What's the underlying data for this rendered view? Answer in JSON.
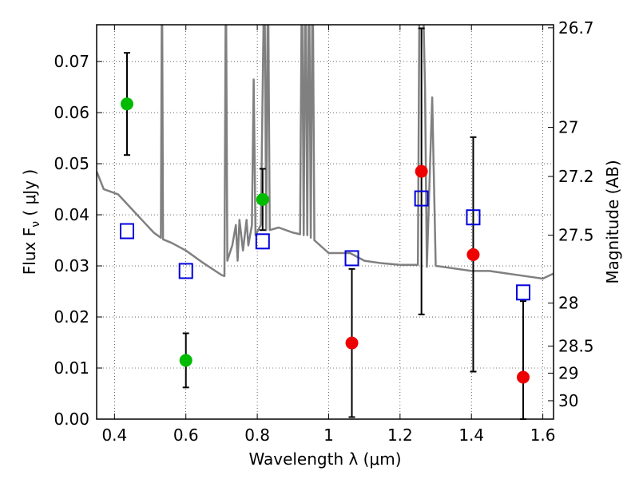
{
  "chart_data": {
    "type": "scatter",
    "xlabel": "Wavelength  λ (μm)",
    "ylabel": "Flux  F_ν  ( μJy )",
    "ylabel_right": "Magnitude (AB)",
    "xlim": [
      0.35,
      1.63
    ],
    "ylim": [
      0.0,
      0.0772
    ],
    "grid": true,
    "x_ticks": [
      0.4,
      0.6,
      0.8,
      1.0,
      1.2,
      1.4,
      1.6
    ],
    "x_tick_labels": [
      "0.4",
      "0.6",
      "0.8",
      "1",
      "1.2",
      "1.4",
      "1.6"
    ],
    "y_ticks": [
      0.0,
      0.01,
      0.02,
      0.03,
      0.04,
      0.05,
      0.06,
      0.07
    ],
    "y_tick_labels": [
      "0.00",
      "0.01",
      "0.02",
      "0.03",
      "0.04",
      "0.05",
      "0.06",
      "0.07"
    ],
    "right_ticks": [
      {
        "label": "26.7",
        "flux": 0.0766
      },
      {
        "label": "27",
        "flux": 0.0571
      },
      {
        "label": "27.2",
        "flux": 0.0475
      },
      {
        "label": "27.5",
        "flux": 0.036
      },
      {
        "label": "28",
        "flux": 0.0227
      },
      {
        "label": "28.5",
        "flux": 0.0143
      },
      {
        "label": "29",
        "flux": 0.009
      },
      {
        "label": "30",
        "flux": 0.0036
      }
    ],
    "series": [
      {
        "color": "#808080",
        "style": "line",
        "points": [
          [
            0.35,
            0.0485
          ],
          [
            0.37,
            0.045
          ],
          [
            0.39,
            0.0445
          ],
          [
            0.41,
            0.044
          ],
          [
            0.43,
            0.0425
          ],
          [
            0.45,
            0.041
          ],
          [
            0.47,
            0.0395
          ],
          [
            0.49,
            0.038
          ],
          [
            0.51,
            0.0365
          ],
          [
            0.53,
            0.0355
          ],
          [
            0.533,
            0.09
          ],
          [
            0.536,
            0.0352
          ],
          [
            0.56,
            0.0345
          ],
          [
            0.6,
            0.033
          ],
          [
            0.65,
            0.0305
          ],
          [
            0.7,
            0.0282
          ],
          [
            0.708,
            0.028
          ],
          [
            0.712,
            0.09
          ],
          [
            0.716,
            0.031
          ],
          [
            0.73,
            0.034
          ],
          [
            0.74,
            0.038
          ],
          [
            0.745,
            0.031
          ],
          [
            0.75,
            0.039
          ],
          [
            0.76,
            0.033
          ],
          [
            0.77,
            0.039
          ],
          [
            0.775,
            0.034
          ],
          [
            0.785,
            0.038
          ],
          [
            0.79,
            0.0665
          ],
          [
            0.795,
            0.036
          ],
          [
            0.81,
            0.038
          ],
          [
            0.82,
            0.09
          ],
          [
            0.825,
            0.037
          ],
          [
            0.83,
            0.09
          ],
          [
            0.835,
            0.037
          ],
          [
            0.86,
            0.0375
          ],
          [
            0.9,
            0.0365
          ],
          [
            0.92,
            0.0362
          ],
          [
            0.925,
            0.09
          ],
          [
            0.93,
            0.036
          ],
          [
            0.935,
            0.09
          ],
          [
            0.94,
            0.036
          ],
          [
            0.945,
            0.09
          ],
          [
            0.95,
            0.0355
          ],
          [
            0.955,
            0.09
          ],
          [
            0.96,
            0.035
          ],
          [
            1.0,
            0.0325
          ],
          [
            1.06,
            0.0325
          ],
          [
            1.1,
            0.031
          ],
          [
            1.15,
            0.0305
          ],
          [
            1.2,
            0.0302
          ],
          [
            1.25,
            0.0302
          ],
          [
            1.255,
            0.09
          ],
          [
            1.262,
            0.09
          ],
          [
            1.27,
            0.065
          ],
          [
            1.275,
            0.0298
          ],
          [
            1.29,
            0.063
          ],
          [
            1.3,
            0.03
          ],
          [
            1.35,
            0.0295
          ],
          [
            1.4,
            0.029
          ],
          [
            1.45,
            0.029
          ],
          [
            1.5,
            0.0285
          ],
          [
            1.55,
            0.028
          ],
          [
            1.6,
            0.0275
          ],
          [
            1.63,
            0.0285
          ]
        ]
      },
      {
        "color": "#00bb00",
        "style": "marker-circle",
        "points": [
          [
            0.435,
            0.0617,
            0.0517,
            0.0717
          ],
          [
            0.6,
            0.0115,
            0.0062,
            0.0168
          ],
          [
            0.815,
            0.043,
            0.037,
            0.049
          ]
        ]
      },
      {
        "color": "#ee0000",
        "style": "marker-circle",
        "points": [
          [
            1.065,
            0.0149,
            0.0004,
            0.0294
          ],
          [
            1.26,
            0.0485,
            0.0205,
            0.0765
          ],
          [
            1.405,
            0.0322,
            0.0093,
            0.0552
          ],
          [
            1.545,
            0.0082,
            0.0,
            0.0231
          ]
        ]
      },
      {
        "color": "#0000dd",
        "style": "marker-open-square",
        "points": [
          [
            0.435,
            0.0368
          ],
          [
            0.6,
            0.029
          ],
          [
            0.815,
            0.0348
          ],
          [
            1.065,
            0.0315
          ],
          [
            1.26,
            0.0432
          ],
          [
            1.405,
            0.0395
          ],
          [
            1.545,
            0.0248
          ]
        ]
      }
    ]
  }
}
